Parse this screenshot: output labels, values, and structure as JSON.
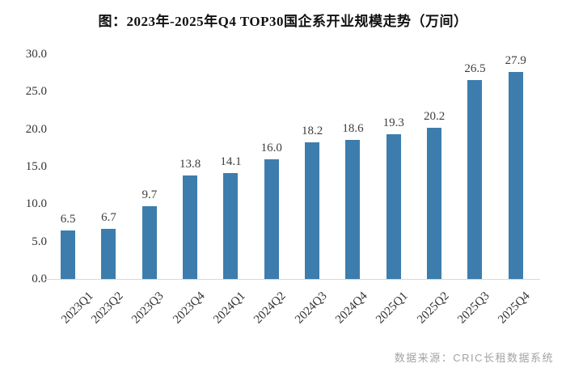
{
  "chart_data": {
    "type": "bar",
    "title": "图：2023年-2025年Q4 TOP30国企系开业规模走势（万间）",
    "categories": [
      "2023Q1",
      "2023Q2",
      "2023Q3",
      "2023Q4",
      "2024Q1",
      "2024Q2",
      "2024Q3",
      "2024Q4",
      "2025Q1",
      "2025Q2",
      "2025Q3",
      "2025Q4"
    ],
    "values": [
      6.5,
      6.7,
      9.7,
      13.8,
      14.1,
      16.0,
      18.2,
      18.6,
      19.3,
      20.2,
      26.5,
      27.9
    ],
    "value_labels": [
      "6.5",
      "6.7",
      "9.7",
      "13.8",
      "14.1",
      "16.0",
      "18.2",
      "18.6",
      "19.3",
      "20.2",
      "26.5",
      "27.9"
    ],
    "xlabel": "",
    "ylabel": "",
    "ylim": [
      0,
      30
    ],
    "ytick_labels": [
      "0.0",
      "5.0",
      "10.0",
      "15.0",
      "20.0",
      "25.0",
      "30.0"
    ],
    "grid": false,
    "legend": false,
    "bar_color": "#3d7dad",
    "source_note": "数据来源：CRIC长租数据系统"
  }
}
